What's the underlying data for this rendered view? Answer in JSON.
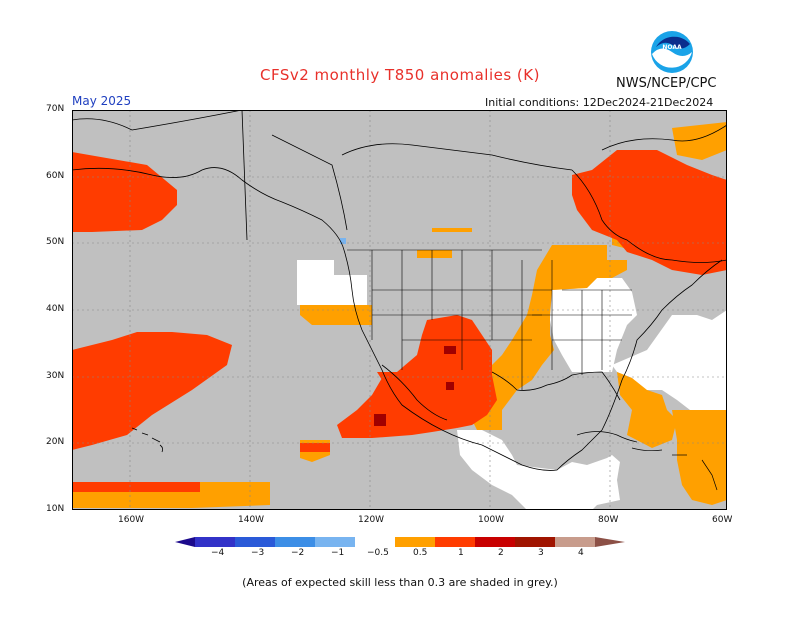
{
  "header": {
    "title": "CFSv2 monthly T850 anomalies (K)",
    "agency": "NWS/NCEP/CPC",
    "month": "May 2025",
    "initial_conditions": "Initial conditions: 12Dec2024-21Dec2024"
  },
  "logo": {
    "text": "NOAA",
    "icon": "noaa-logo-icon"
  },
  "axes": {
    "lat_labels": [
      "70N",
      "60N",
      "50N",
      "40N",
      "30N",
      "20N",
      "10N"
    ],
    "lon_labels": [
      "160W",
      "140W",
      "120W",
      "100W",
      "80W",
      "60W"
    ]
  },
  "colorbar": {
    "labels": [
      "−4",
      "−3",
      "−2",
      "−1",
      "−0.5",
      "0.5",
      "1",
      "2",
      "3",
      "4"
    ],
    "colors": [
      "#1c0a8c",
      "#3232c8",
      "#2a5ad8",
      "#3c8ee6",
      "#78b4f0",
      "#ffffff",
      "#ffa000",
      "#ff3c00",
      "#c80000",
      "#a01400",
      "#c89c8c",
      "#8c5046"
    ]
  },
  "palette": {
    "grey": "#c0c0c0",
    "orange": "#ffa000",
    "red": "#ff3c00",
    "darkred": "#a00000",
    "blue": "#3c8ee6",
    "title": "#e8302a"
  },
  "footnote": "(Areas of expected skill less than 0.3 are shaded in grey.)"
}
